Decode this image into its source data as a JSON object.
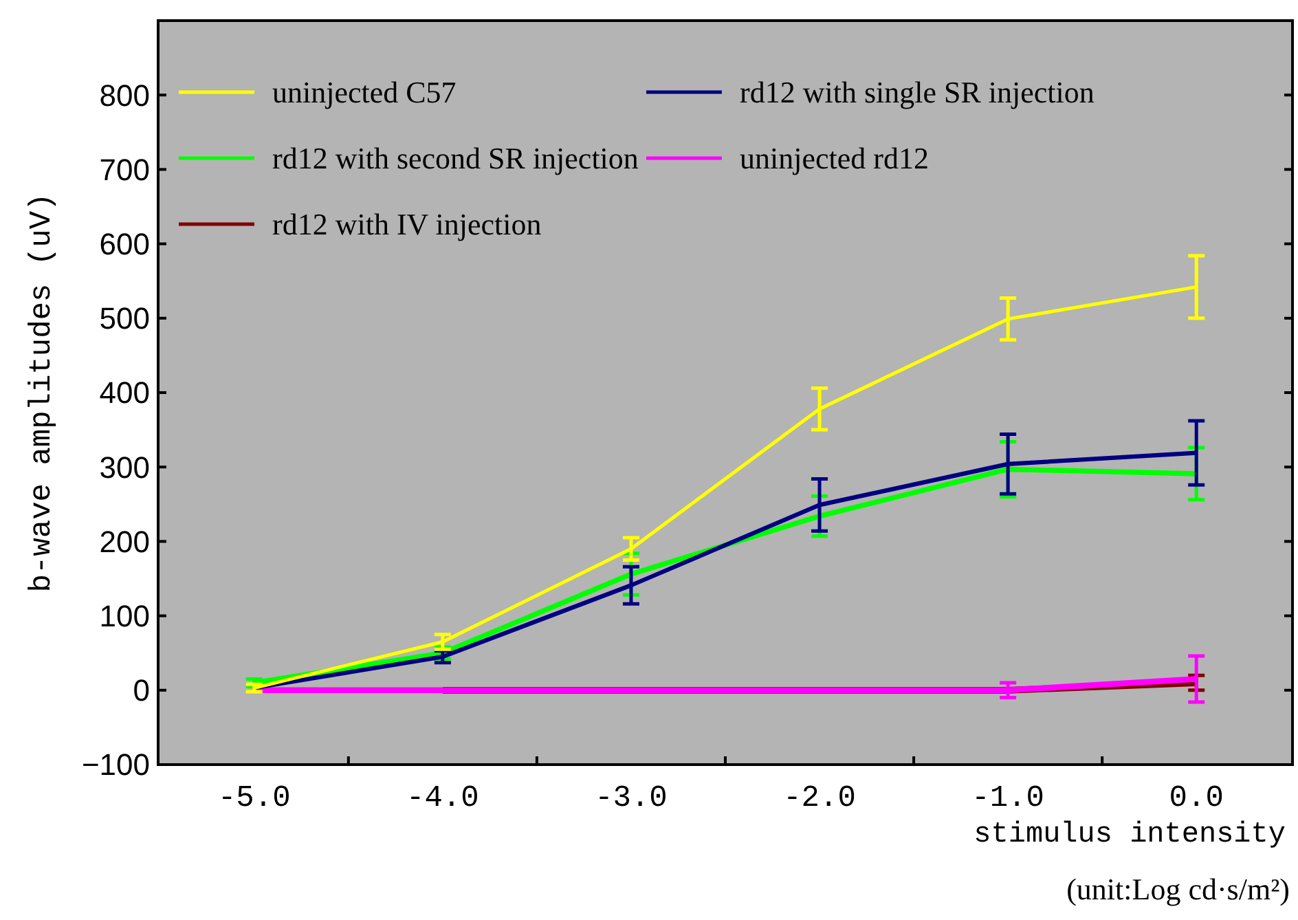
{
  "chart_data": {
    "type": "line",
    "xlabel": "stimulus intensity (unit:Log cd·s/m²)",
    "ylabel": "b-wave amplitudes (uV)",
    "categories": [
      "-5.0",
      "-4.0",
      "-3.0",
      "-2.0",
      "-1.0",
      "0.0"
    ],
    "ylim": [
      -100,
      900
    ],
    "yticks": [
      -100,
      0,
      100,
      200,
      300,
      400,
      500,
      600,
      700,
      800
    ],
    "grid": false,
    "legend": "top left",
    "marker": "none",
    "line_style": "solid",
    "series": [
      {
        "name": "uninjected C57",
        "color": "#ffff00",
        "values": [
          3,
          65,
          190,
          378,
          499,
          542
        ],
        "errors": [
          5,
          10,
          15,
          28,
          28,
          42
        ]
      },
      {
        "name": "rd12 with single SR injection",
        "color": "#000080",
        "values": [
          3,
          45,
          141,
          249,
          304,
          319
        ],
        "errors": [
          null,
          8,
          25,
          35,
          40,
          43
        ]
      },
      {
        "name": "rd12 with second SR injection",
        "color": "#00ff00",
        "values": [
          10,
          50,
          156,
          234,
          297,
          291
        ],
        "errors": [
          5,
          8,
          28,
          27,
          37,
          35
        ]
      },
      {
        "name": "uninjected rd12",
        "color": "#ff00ff",
        "values": [
          0,
          0,
          0,
          0,
          0,
          15
        ],
        "errors": [
          null,
          null,
          null,
          null,
          10,
          31
        ]
      },
      {
        "name": "rd12 with IV injection",
        "color": "#800000",
        "values": [
          null,
          0,
          0,
          0,
          0,
          10
        ],
        "errors": [
          null,
          null,
          null,
          null,
          null,
          10
        ]
      }
    ]
  }
}
